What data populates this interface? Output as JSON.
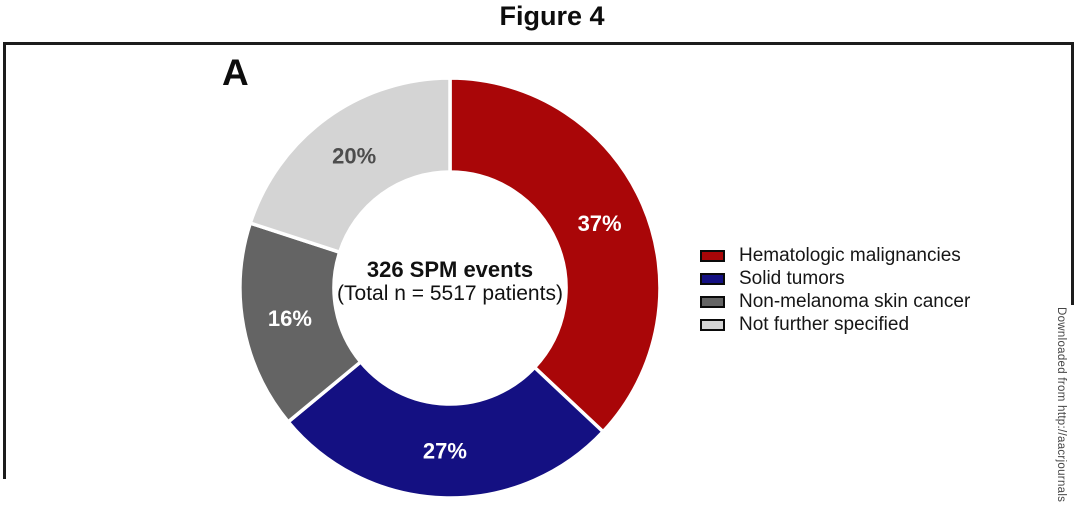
{
  "figure": {
    "title": "Figure 4",
    "panel_label": "A"
  },
  "chart_data": {
    "type": "pie",
    "subtype": "donut",
    "title": "Figure 4 — Panel A: Second primary malignancy (SPM) events",
    "start_angle_deg": 0,
    "direction": "clockwise",
    "legend_position": "right",
    "total_events": 326,
    "total_patients": 5517,
    "center_label": {
      "line1": "326 SPM events",
      "line2": "(Total n = 5517 patients)"
    },
    "segments": [
      {
        "label": "Hematologic malignancies",
        "value_pct": 37,
        "pct_label": "37%",
        "color": "#A90608",
        "pct_label_color": "#FFFFFF"
      },
      {
        "label": "Solid tumors",
        "value_pct": 27,
        "pct_label": "27%",
        "color": "#141082",
        "pct_label_color": "#FFFFFF"
      },
      {
        "label": "Non-melanoma skin cancer",
        "value_pct": 16,
        "pct_label": "16%",
        "color": "#646464",
        "pct_label_color": "#FFFFFF"
      },
      {
        "label": "Not further specified",
        "value_pct": 20,
        "pct_label": "20%",
        "color": "#D4D4D4",
        "pct_label_color": "#4D4D4D"
      }
    ]
  },
  "watermark": {
    "text": "Downloaded from http://aacrjournals"
  }
}
